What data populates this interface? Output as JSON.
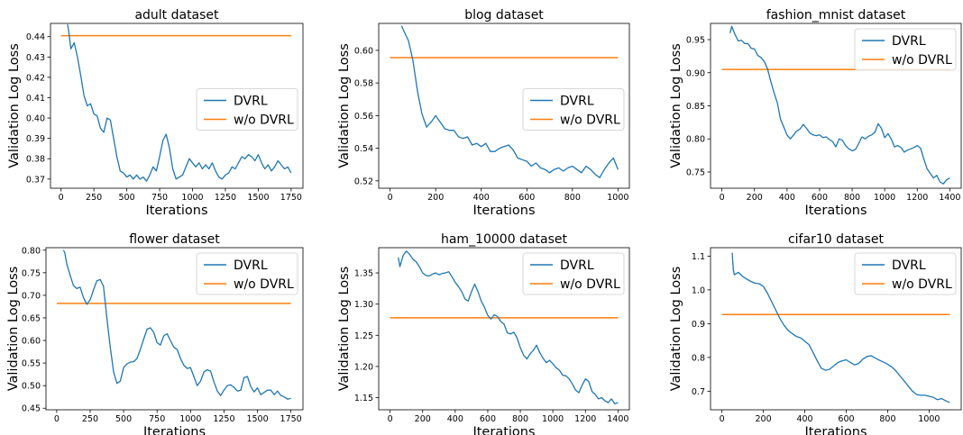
{
  "chart_data": [
    {
      "type": "line",
      "title": "adult dataset",
      "xlabel": "Iterations",
      "ylabel": "Validation Log Loss",
      "xlim": [
        -80,
        1840
      ],
      "ylim": [
        0.3655,
        0.4465
      ],
      "xticks": [
        0,
        250,
        500,
        750,
        1000,
        1250,
        1500,
        1750
      ],
      "yticks": [
        0.37,
        0.38,
        0.39,
        0.4,
        0.41,
        0.42,
        0.43,
        0.44
      ],
      "ytick_labels": [
        "0.37",
        "0.38",
        "0.39",
        "0.40",
        "0.41",
        "0.42",
        "0.43",
        "0.44"
      ],
      "legend_position": "center-right",
      "series": [
        {
          "name": "DVRL",
          "color": "#1f77b4",
          "x": [
            50,
            60,
            75,
            100,
            125,
            150,
            175,
            200,
            225,
            250,
            275,
            300,
            325,
            350,
            375,
            400,
            425,
            450,
            475,
            500,
            525,
            550,
            575,
            600,
            625,
            650,
            675,
            700,
            725,
            750,
            775,
            800,
            825,
            850,
            875,
            900,
            925,
            950,
            975,
            1000,
            1025,
            1050,
            1075,
            1100,
            1125,
            1150,
            1175,
            1200,
            1225,
            1250,
            1275,
            1300,
            1325,
            1350,
            1375,
            1400,
            1425,
            1450,
            1475,
            1500,
            1525,
            1550,
            1575,
            1600,
            1625,
            1650,
            1675,
            1700,
            1725,
            1750
          ],
          "y": [
            0.446,
            0.442,
            0.434,
            0.437,
            0.43,
            0.421,
            0.411,
            0.406,
            0.407,
            0.402,
            0.401,
            0.395,
            0.393,
            0.4,
            0.399,
            0.39,
            0.381,
            0.374,
            0.373,
            0.371,
            0.372,
            0.37,
            0.372,
            0.37,
            0.371,
            0.369,
            0.372,
            0.376,
            0.374,
            0.381,
            0.389,
            0.392,
            0.385,
            0.375,
            0.37,
            0.371,
            0.372,
            0.376,
            0.38,
            0.378,
            0.376,
            0.378,
            0.375,
            0.377,
            0.375,
            0.378,
            0.374,
            0.371,
            0.37,
            0.372,
            0.373,
            0.376,
            0.375,
            0.378,
            0.381,
            0.38,
            0.382,
            0.381,
            0.379,
            0.382,
            0.378,
            0.375,
            0.377,
            0.374,
            0.376,
            0.379,
            0.377,
            0.375,
            0.376,
            0.373
          ]
        },
        {
          "name": "w/o DVRL",
          "color": "#ff7f0e",
          "x": [
            0,
            1750
          ],
          "y": [
            0.4405,
            0.4405
          ]
        }
      ]
    },
    {
      "type": "line",
      "title": "blog dataset",
      "xlabel": "Iterations",
      "ylabel": "Validation Log Loss",
      "xlim": [
        -50,
        1050
      ],
      "ylim": [
        0.5155,
        0.6165
      ],
      "xticks": [
        0,
        200,
        400,
        600,
        800,
        1000
      ],
      "yticks": [
        0.52,
        0.54,
        0.56,
        0.58,
        0.6
      ],
      "ytick_labels": [
        "0.52",
        "0.54",
        "0.56",
        "0.58",
        "0.60"
      ],
      "legend_position": "center-right",
      "series": [
        {
          "name": "DVRL",
          "color": "#1f77b4",
          "x": [
            50,
            60,
            80,
            100,
            120,
            140,
            160,
            180,
            200,
            220,
            240,
            260,
            280,
            300,
            320,
            340,
            360,
            380,
            400,
            420,
            440,
            460,
            480,
            500,
            520,
            540,
            560,
            580,
            600,
            620,
            640,
            660,
            680,
            700,
            720,
            740,
            760,
            780,
            800,
            820,
            840,
            860,
            880,
            900,
            920,
            940,
            960,
            980,
            1000
          ],
          "y": [
            0.615,
            0.612,
            0.606,
            0.594,
            0.575,
            0.561,
            0.553,
            0.556,
            0.56,
            0.556,
            0.552,
            0.551,
            0.551,
            0.547,
            0.546,
            0.547,
            0.542,
            0.543,
            0.541,
            0.543,
            0.538,
            0.538,
            0.54,
            0.541,
            0.542,
            0.539,
            0.534,
            0.533,
            0.532,
            0.529,
            0.531,
            0.528,
            0.527,
            0.525,
            0.527,
            0.528,
            0.526,
            0.528,
            0.529,
            0.527,
            0.525,
            0.529,
            0.527,
            0.524,
            0.522,
            0.527,
            0.531,
            0.534,
            0.527
          ]
        },
        {
          "name": "w/o DVRL",
          "color": "#ff7f0e",
          "x": [
            0,
            1000
          ],
          "y": [
            0.5955,
            0.5955
          ]
        }
      ]
    },
    {
      "type": "line",
      "title": "fashion_mnist dataset",
      "xlabel": "Iterations",
      "ylabel": "Validation Log Loss",
      "xlim": [
        -70,
        1470
      ],
      "ylim": [
        0.7255,
        0.9745
      ],
      "xticks": [
        0,
        200,
        400,
        600,
        800,
        1000,
        1200,
        1400
      ],
      "yticks": [
        0.75,
        0.8,
        0.85,
        0.9,
        0.95
      ],
      "ytick_labels": [
        "0.75",
        "0.80",
        "0.85",
        "0.90",
        "0.95"
      ],
      "legend_position": "top-right",
      "series": [
        {
          "name": "DVRL",
          "color": "#1f77b4",
          "x": [
            50,
            60,
            80,
            100,
            120,
            140,
            160,
            180,
            200,
            220,
            240,
            260,
            280,
            300,
            320,
            340,
            360,
            380,
            400,
            420,
            440,
            460,
            480,
            500,
            520,
            540,
            560,
            580,
            600,
            620,
            640,
            660,
            680,
            700,
            720,
            740,
            760,
            780,
            800,
            820,
            840,
            860,
            880,
            900,
            920,
            940,
            960,
            980,
            1000,
            1020,
            1040,
            1060,
            1080,
            1100,
            1120,
            1140,
            1160,
            1180,
            1200,
            1220,
            1240,
            1260,
            1280,
            1300,
            1320,
            1340,
            1360,
            1380,
            1400
          ],
          "y": [
            0.96,
            0.97,
            0.958,
            0.948,
            0.949,
            0.944,
            0.944,
            0.937,
            0.936,
            0.926,
            0.923,
            0.917,
            0.906,
            0.887,
            0.87,
            0.855,
            0.83,
            0.818,
            0.806,
            0.8,
            0.806,
            0.812,
            0.815,
            0.822,
            0.816,
            0.809,
            0.806,
            0.805,
            0.806,
            0.802,
            0.803,
            0.799,
            0.796,
            0.788,
            0.8,
            0.798,
            0.79,
            0.785,
            0.782,
            0.784,
            0.793,
            0.803,
            0.8,
            0.804,
            0.806,
            0.81,
            0.823,
            0.816,
            0.802,
            0.808,
            0.8,
            0.788,
            0.79,
            0.787,
            0.78,
            0.783,
            0.785,
            0.787,
            0.79,
            0.786,
            0.77,
            0.755,
            0.748,
            0.741,
            0.745,
            0.735,
            0.732,
            0.738,
            0.741
          ]
        },
        {
          "name": "w/o DVRL",
          "color": "#ff7f0e",
          "x": [
            0,
            1400
          ],
          "y": [
            0.905,
            0.905
          ]
        }
      ]
    },
    {
      "type": "line",
      "title": "flower dataset",
      "xlabel": "Iterations",
      "ylabel": "Validation Log Loss",
      "xlim": [
        -80,
        1840
      ],
      "ylim": [
        0.4465,
        0.8055
      ],
      "xticks": [
        0,
        250,
        500,
        750,
        1000,
        1250,
        1500,
        1750
      ],
      "yticks": [
        0.45,
        0.5,
        0.55,
        0.6,
        0.65,
        0.7,
        0.75,
        0.8
      ],
      "ytick_labels": [
        "0.45",
        "0.50",
        "0.55",
        "0.60",
        "0.65",
        "0.70",
        "0.75",
        "0.80"
      ],
      "legend_position": "top-right",
      "series": [
        {
          "name": "DVRL",
          "color": "#1f77b4",
          "x": [
            50,
            60,
            75,
            100,
            125,
            150,
            175,
            200,
            225,
            250,
            275,
            300,
            325,
            350,
            375,
            400,
            425,
            450,
            475,
            500,
            525,
            550,
            575,
            600,
            625,
            650,
            675,
            700,
            725,
            750,
            775,
            800,
            825,
            850,
            875,
            900,
            925,
            950,
            975,
            1000,
            1025,
            1050,
            1075,
            1100,
            1125,
            1150,
            1175,
            1200,
            1225,
            1250,
            1275,
            1300,
            1325,
            1350,
            1375,
            1400,
            1425,
            1450,
            1475,
            1500,
            1525,
            1550,
            1575,
            1600,
            1625,
            1650,
            1675,
            1700,
            1725,
            1750
          ],
          "y": [
            0.8,
            0.795,
            0.77,
            0.745,
            0.722,
            0.715,
            0.718,
            0.695,
            0.68,
            0.69,
            0.712,
            0.732,
            0.735,
            0.72,
            0.65,
            0.585,
            0.53,
            0.505,
            0.51,
            0.54,
            0.548,
            0.552,
            0.553,
            0.56,
            0.58,
            0.603,
            0.625,
            0.628,
            0.618,
            0.595,
            0.59,
            0.61,
            0.615,
            0.6,
            0.585,
            0.58,
            0.56,
            0.545,
            0.538,
            0.54,
            0.52,
            0.5,
            0.51,
            0.53,
            0.535,
            0.532,
            0.508,
            0.488,
            0.478,
            0.49,
            0.5,
            0.502,
            0.496,
            0.488,
            0.49,
            0.518,
            0.52,
            0.498,
            0.486,
            0.495,
            0.48,
            0.485,
            0.49,
            0.49,
            0.48,
            0.488,
            0.478,
            0.475,
            0.47,
            0.472
          ]
        },
        {
          "name": "w/o DVRL",
          "color": "#ff7f0e",
          "x": [
            0,
            1750
          ],
          "y": [
            0.682,
            0.682
          ]
        }
      ]
    },
    {
      "type": "line",
      "title": "ham_10000 dataset",
      "xlabel": "Iterations",
      "ylabel": "Validation Log Loss",
      "xlim": [
        -70,
        1470
      ],
      "ylim": [
        1.1305,
        1.3905
      ],
      "xticks": [
        0,
        200,
        400,
        600,
        800,
        1000,
        1200,
        1400
      ],
      "yticks": [
        1.15,
        1.2,
        1.25,
        1.3,
        1.35
      ],
      "ytick_labels": [
        "1.15",
        "1.20",
        "1.25",
        "1.30",
        "1.35"
      ],
      "legend_position": "top-right",
      "series": [
        {
          "name": "DVRL",
          "color": "#1f77b4",
          "x": [
            50,
            60,
            80,
            100,
            120,
            140,
            160,
            180,
            200,
            220,
            240,
            260,
            280,
            300,
            320,
            340,
            360,
            380,
            400,
            420,
            440,
            460,
            480,
            500,
            520,
            540,
            560,
            580,
            600,
            620,
            640,
            660,
            680,
            700,
            720,
            740,
            760,
            780,
            800,
            820,
            840,
            860,
            880,
            900,
            920,
            940,
            960,
            980,
            1000,
            1020,
            1040,
            1060,
            1080,
            1100,
            1120,
            1140,
            1160,
            1180,
            1200,
            1220,
            1240,
            1260,
            1280,
            1300,
            1320,
            1340,
            1360,
            1380,
            1400
          ],
          "y": [
            1.375,
            1.36,
            1.378,
            1.385,
            1.38,
            1.372,
            1.368,
            1.36,
            1.35,
            1.346,
            1.345,
            1.348,
            1.35,
            1.347,
            1.349,
            1.35,
            1.352,
            1.344,
            1.335,
            1.328,
            1.32,
            1.308,
            1.305,
            1.32,
            1.332,
            1.32,
            1.305,
            1.295,
            1.282,
            1.276,
            1.283,
            1.28,
            1.272,
            1.268,
            1.254,
            1.252,
            1.255,
            1.246,
            1.23,
            1.218,
            1.212,
            1.22,
            1.226,
            1.234,
            1.222,
            1.213,
            1.206,
            1.21,
            1.204,
            1.198,
            1.194,
            1.186,
            1.185,
            1.18,
            1.172,
            1.162,
            1.158,
            1.17,
            1.18,
            1.176,
            1.16,
            1.155,
            1.148,
            1.15,
            1.145,
            1.142,
            1.148,
            1.14,
            1.142
          ]
        },
        {
          "name": "w/o DVRL",
          "color": "#ff7f0e",
          "x": [
            0,
            1400
          ],
          "y": [
            1.278,
            1.278
          ]
        }
      ]
    },
    {
      "type": "line",
      "title": "cifar10 dataset",
      "xlabel": "Iterations",
      "ylabel": "Validation Log Loss",
      "xlim": [
        -55,
        1155
      ],
      "ylim": [
        0.645,
        1.125
      ],
      "xticks": [
        0,
        200,
        400,
        600,
        800,
        1000
      ],
      "yticks": [
        0.7,
        0.8,
        0.9,
        1.0,
        1.1
      ],
      "ytick_labels": [
        "0.7",
        "0.8",
        "0.9",
        "1.0",
        "1.1"
      ],
      "legend_position": "top-right",
      "series": [
        {
          "name": "DVRL",
          "color": "#1f77b4",
          "x": [
            50,
            52,
            55,
            60,
            80,
            100,
            120,
            140,
            160,
            180,
            200,
            220,
            240,
            260,
            280,
            300,
            320,
            340,
            360,
            380,
            400,
            420,
            440,
            460,
            480,
            500,
            520,
            540,
            560,
            580,
            600,
            620,
            640,
            660,
            680,
            700,
            720,
            740,
            760,
            780,
            800,
            820,
            840,
            860,
            880,
            900,
            920,
            940,
            960,
            980,
            1000,
            1020,
            1040,
            1060,
            1080,
            1100
          ],
          "y": [
            1.11,
            1.085,
            1.06,
            1.045,
            1.052,
            1.04,
            1.032,
            1.025,
            1.02,
            1.018,
            1.01,
            0.99,
            0.965,
            0.94,
            0.915,
            0.895,
            0.88,
            0.87,
            0.862,
            0.858,
            0.848,
            0.838,
            0.815,
            0.79,
            0.768,
            0.762,
            0.765,
            0.775,
            0.785,
            0.79,
            0.793,
            0.785,
            0.778,
            0.782,
            0.795,
            0.803,
            0.805,
            0.798,
            0.792,
            0.786,
            0.78,
            0.772,
            0.76,
            0.745,
            0.73,
            0.715,
            0.7,
            0.69,
            0.688,
            0.688,
            0.685,
            0.682,
            0.675,
            0.678,
            0.672,
            0.666
          ]
        },
        {
          "name": "w/o DVRL",
          "color": "#ff7f0e",
          "x": [
            0,
            1100
          ],
          "y": [
            0.927,
            0.927
          ]
        }
      ]
    }
  ]
}
